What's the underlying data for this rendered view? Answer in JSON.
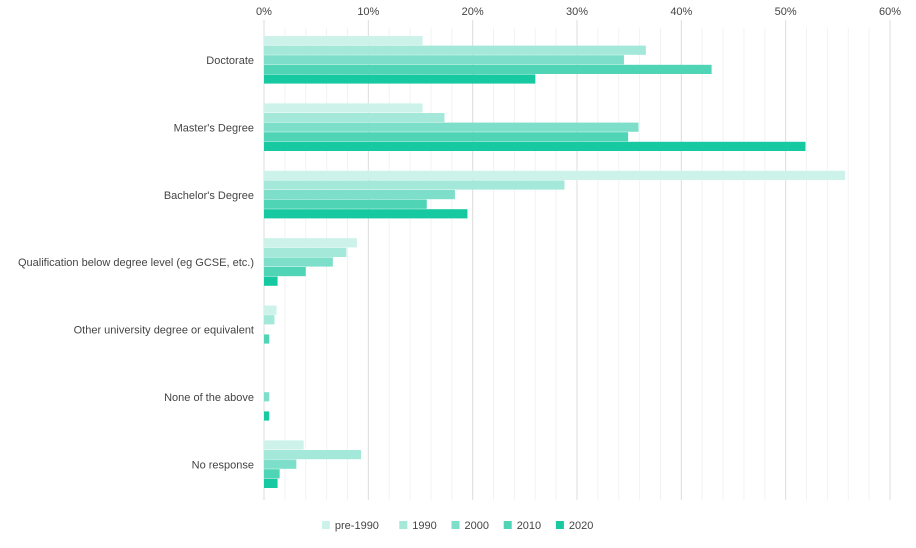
{
  "chart_data": {
    "type": "bar",
    "orientation": "horizontal",
    "title": "",
    "xlabel": "",
    "ylabel": "",
    "xlim": [
      0,
      60
    ],
    "x_ticks": [
      0,
      10,
      20,
      30,
      40,
      50,
      60
    ],
    "x_tick_labels": [
      "0%",
      "10%",
      "20%",
      "30%",
      "40%",
      "50%",
      "60%"
    ],
    "x_axis_position": "top",
    "grid": true,
    "minor_grid_step": 2,
    "legend_position": "bottom-center",
    "categories": [
      "Doctorate",
      "Master's Degree",
      "Bachelor's Degree",
      "Qualification below degree level (eg GCSE, etc.)",
      "Other university degree or equivalent",
      "None of the above",
      "No response"
    ],
    "series": [
      {
        "name": "pre-1990",
        "color": "#ccf2ea",
        "values": [
          15.2,
          15.2,
          55.7,
          8.9,
          1.2,
          0,
          3.8
        ]
      },
      {
        "name": "1990",
        "color": "#a3e8d9",
        "values": [
          36.6,
          17.3,
          28.8,
          7.9,
          1.0,
          0,
          9.3
        ]
      },
      {
        "name": "2000",
        "color": "#7ddfca",
        "values": [
          34.5,
          35.9,
          18.3,
          6.6,
          0,
          0.5,
          3.1
        ]
      },
      {
        "name": "2010",
        "color": "#4fd4b5",
        "values": [
          42.9,
          34.9,
          15.6,
          4.0,
          0.5,
          0,
          1.5
        ]
      },
      {
        "name": "2020",
        "color": "#17c9a0",
        "values": [
          26.0,
          51.9,
          19.5,
          1.3,
          0,
          0.5,
          1.3
        ]
      }
    ]
  }
}
